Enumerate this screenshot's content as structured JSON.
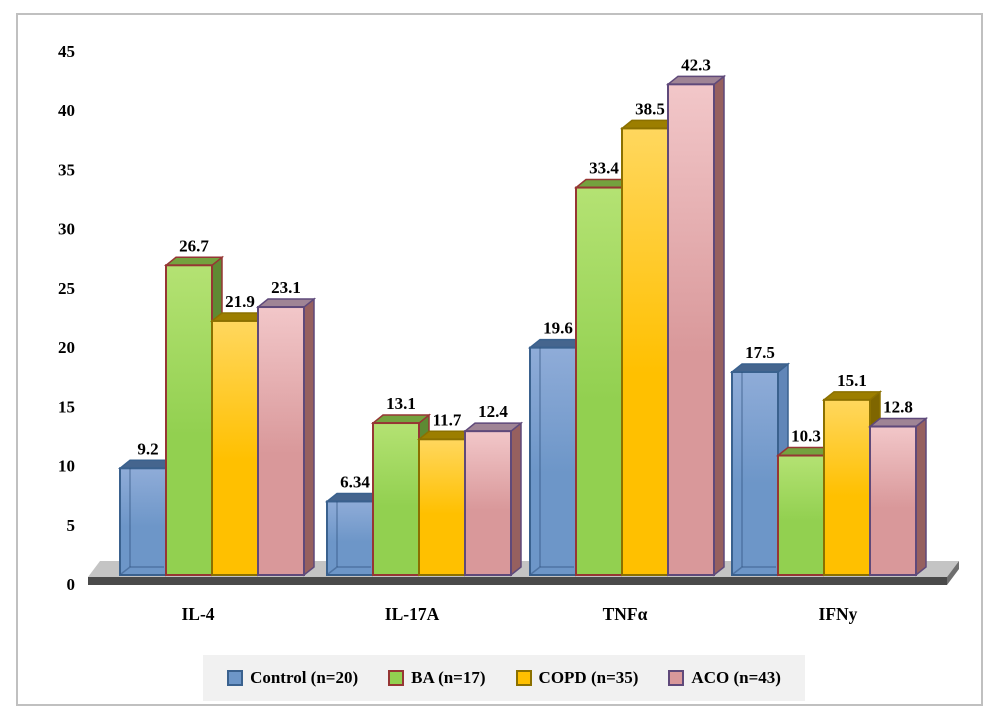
{
  "chart_data": {
    "type": "bar",
    "title": "",
    "style": "3d-clustered-column",
    "categories": [
      "IL-4",
      "IL-17A",
      "TNFα",
      "IFNy"
    ],
    "series": [
      {
        "name": "Control (n=20)",
        "values": [
          9.2,
          6.34,
          19.6,
          17.5
        ]
      },
      {
        "name": "BA (n=17)",
        "values": [
          26.7,
          13.1,
          33.4,
          10.3
        ]
      },
      {
        "name": "COPD (n=35)",
        "values": [
          21.9,
          11.7,
          38.5,
          15.1
        ]
      },
      {
        "name": "ACO (n=43)",
        "values": [
          23.1,
          12.4,
          42.3,
          12.8
        ]
      }
    ],
    "data_labels_shown": true,
    "y_axis": {
      "min": 0,
      "max": 45,
      "step": 5,
      "ticks": [
        0,
        5,
        10,
        15,
        20,
        25,
        30,
        35,
        40,
        45
      ]
    },
    "grid": false,
    "legend_position": "bottom"
  },
  "colors": {
    "series": [
      {
        "fill": "#6D96C8",
        "fill_light": "#8FACD8",
        "top": "#45658E",
        "side": "#6186B8",
        "stroke": "#3A618E",
        "glass": true
      },
      {
        "fill": "#92D050",
        "fill_light": "#B4E273",
        "top": "#74A23E",
        "side": "#5E8A33",
        "stroke": "#963634",
        "glass": false
      },
      {
        "fill": "#FFC000",
        "fill_light": "#FFD75E",
        "top": "#9C7E00",
        "side": "#7F6600",
        "stroke": "#8B7000",
        "glass": false
      },
      {
        "fill": "#D9989A",
        "fill_light": "#F2C7C9",
        "top": "#9F8495",
        "side": "#96605F",
        "stroke": "#5F497A",
        "glass": false
      }
    ],
    "floor_top": "#C4C4C4",
    "floor_front": "#4A4A4A",
    "floor_end": "#6E6E6E",
    "legend_bg": "#F1F1F1",
    "frame_border": "#C0C0C0",
    "text": "#000000"
  }
}
